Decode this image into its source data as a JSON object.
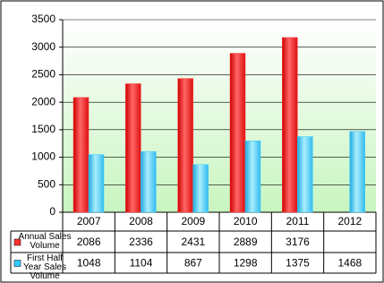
{
  "chart_data": {
    "type": "bar",
    "categories": [
      "2007",
      "2008",
      "2009",
      "2010",
      "2011",
      "2012"
    ],
    "series": [
      {
        "name": "Annual Sales Volume",
        "color": "#ff3333",
        "values": [
          2086,
          2336,
          2431,
          2889,
          3176,
          null
        ]
      },
      {
        "name": "First Half Year Sales Volume",
        "color": "#33ccff",
        "values": [
          1048,
          1104,
          867,
          1298,
          1375,
          1468
        ]
      }
    ],
    "ylim": [
      0,
      3500
    ],
    "yticks": [
      0,
      500,
      1000,
      1500,
      2000,
      2500,
      3000,
      3500
    ],
    "grid": true
  }
}
